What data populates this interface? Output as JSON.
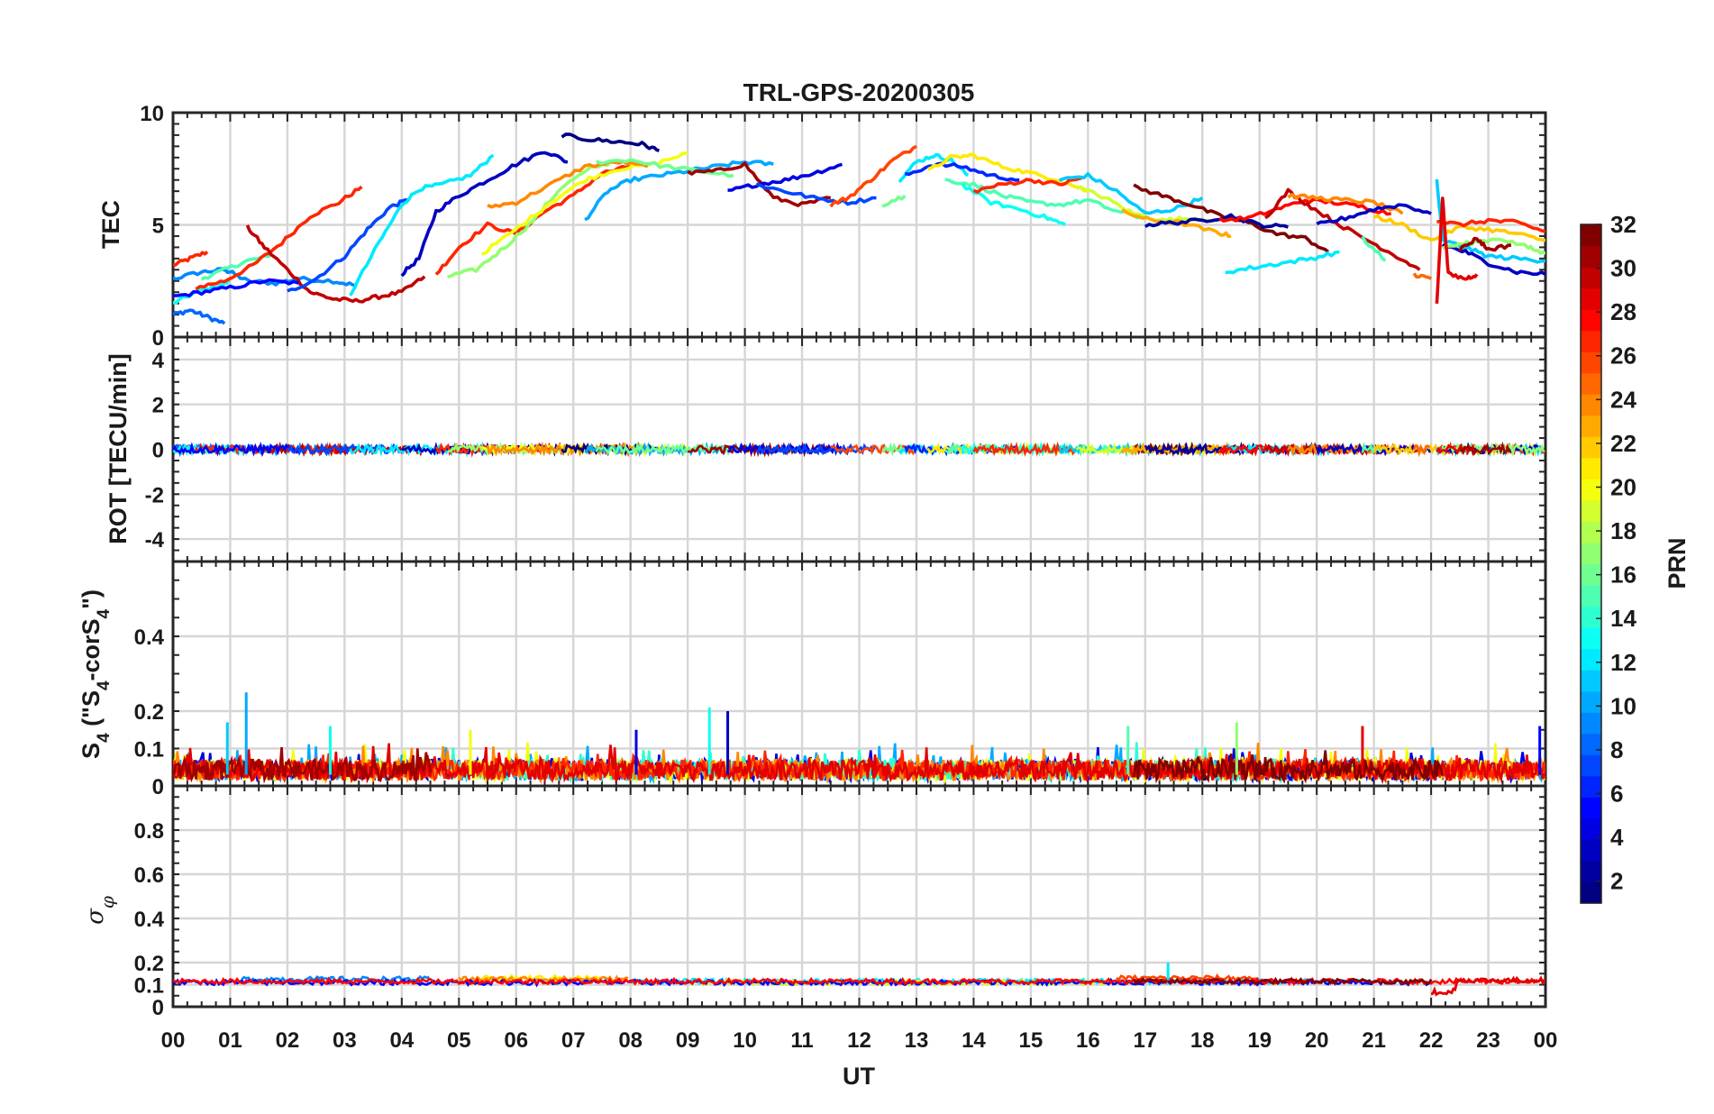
{
  "chart_data": {
    "type": "line",
    "title": "TRL-GPS-20200305",
    "xlabel": "UT",
    "x_ticks": [
      "00",
      "01",
      "02",
      "03",
      "04",
      "05",
      "06",
      "07",
      "08",
      "09",
      "10",
      "11",
      "12",
      "13",
      "14",
      "15",
      "16",
      "17",
      "18",
      "19",
      "20",
      "21",
      "22",
      "23",
      "00"
    ],
    "xlim": [
      0,
      24
    ],
    "grid": true,
    "colorbar": {
      "label": "PRN",
      "range": [
        1,
        32
      ],
      "ticks": [
        "2",
        "4",
        "6",
        "8",
        "10",
        "12",
        "14",
        "16",
        "18",
        "20",
        "22",
        "24",
        "26",
        "28",
        "30",
        "32"
      ],
      "colormap": "jet"
    },
    "panels": [
      {
        "id": "tec",
        "ylabel": "TEC",
        "ylim": [
          0,
          10
        ],
        "yticks": [
          "0",
          "5",
          "10"
        ],
        "series": [
          {
            "prn": 27,
            "x": [
              0.0,
              0.3,
              0.6
            ],
            "y": [
              3.2,
              3.5,
              3.8
            ]
          },
          {
            "prn": 9,
            "x": [
              0.0,
              0.5,
              0.9,
              1.0,
              1.3,
              1.8,
              2.2,
              2.8,
              3.2
            ],
            "y": [
              2.6,
              2.9,
              3.0,
              2.9,
              2.5,
              2.4,
              2.6,
              2.5,
              2.3
            ]
          },
          {
            "prn": 8,
            "x": [
              0.0,
              0.3,
              0.6,
              0.9
            ],
            "y": [
              1.0,
              1.2,
              0.9,
              0.6
            ]
          },
          {
            "prn": 13,
            "x": [
              0.0,
              0.4,
              0.8,
              1.0
            ],
            "y": [
              1.5,
              2.0,
              2.3,
              2.5
            ]
          },
          {
            "prn": 15,
            "x": [
              0.5,
              0.9,
              1.3,
              1.7
            ],
            "y": [
              2.6,
              3.0,
              3.4,
              3.6
            ]
          },
          {
            "prn": 27,
            "x": [
              0.4,
              0.9,
              1.4,
              1.9,
              2.4,
              2.9,
              3.3
            ],
            "y": [
              2.2,
              2.5,
              3.2,
              4.2,
              5.4,
              6.0,
              6.7
            ]
          },
          {
            "prn": 30,
            "x": [
              1.3,
              1.6,
              2.0,
              2.4,
              2.8,
              3.2,
              3.6,
              4.0,
              4.4
            ],
            "y": [
              4.9,
              4.0,
              3.0,
              2.0,
              1.7,
              1.6,
              1.8,
              2.0,
              2.7
            ]
          },
          {
            "prn": 5,
            "x": [
              0.0,
              0.5,
              1.0,
              1.6,
              2.2
            ],
            "y": [
              1.8,
              2.0,
              2.2,
              2.5,
              2.4
            ]
          },
          {
            "prn": 7,
            "x": [
              2.0,
              2.5,
              3.0,
              3.4,
              3.8,
              4.1
            ],
            "y": [
              2.0,
              2.6,
              3.6,
              4.8,
              5.8,
              6.1
            ]
          },
          {
            "prn": 12,
            "x": [
              3.1,
              3.6,
              4.0,
              4.3,
              4.7,
              5.2,
              5.6
            ],
            "y": [
              1.9,
              4.2,
              5.9,
              6.6,
              6.8,
              7.2,
              8.1
            ]
          },
          {
            "prn": 3,
            "x": [
              4.0,
              4.3,
              4.6,
              5.0,
              5.5,
              6.0,
              6.5,
              6.9
            ],
            "y": [
              2.8,
              3.5,
              5.6,
              6.3,
              7.0,
              7.7,
              8.3,
              7.8
            ]
          },
          {
            "prn": 27,
            "x": [
              4.6,
              5.0,
              5.5,
              6.0,
              6.5,
              7.0,
              7.5,
              8.0
            ],
            "y": [
              2.8,
              4.0,
              5.0,
              4.6,
              5.6,
              6.3,
              7.3,
              7.6
            ]
          },
          {
            "prn": 17,
            "x": [
              4.8,
              5.3,
              5.8,
              6.3,
              6.8,
              7.3,
              7.8
            ],
            "y": [
              2.7,
              3.0,
              4.0,
              5.2,
              6.7,
              7.5,
              7.9
            ]
          },
          {
            "prn": 20,
            "x": [
              5.4,
              6.0,
              6.6,
              7.2,
              7.8,
              8.4,
              9.0
            ],
            "y": [
              3.7,
              4.8,
              6.0,
              7.0,
              7.5,
              7.7,
              8.2
            ]
          },
          {
            "prn": 24,
            "x": [
              5.5,
              6.0,
              6.6,
              7.2,
              7.8,
              8.3
            ],
            "y": [
              5.8,
              6.0,
              6.8,
              7.6,
              7.8,
              7.6
            ]
          },
          {
            "prn": 1,
            "x": [
              6.8,
              7.3,
              7.8,
              8.2,
              8.5
            ],
            "y": [
              9.0,
              8.8,
              8.7,
              8.6,
              8.3
            ]
          },
          {
            "prn": 10,
            "x": [
              7.2,
              7.6,
              8.0,
              8.5,
              9.0,
              9.5,
              10.0,
              10.5
            ],
            "y": [
              5.2,
              6.5,
              7.0,
              7.2,
              7.4,
              7.6,
              7.8,
              7.7
            ]
          },
          {
            "prn": 16,
            "x": [
              7.4,
              8.0,
              8.6,
              9.2,
              9.8
            ],
            "y": [
              7.8,
              7.9,
              7.6,
              7.4,
              7.2
            ]
          },
          {
            "prn": 31,
            "x": [
              9.0,
              9.5,
              10.0,
              10.5,
              11.0,
              11.5
            ],
            "y": [
              7.3,
              7.4,
              7.7,
              6.2,
              5.9,
              6.2
            ]
          },
          {
            "prn": 4,
            "x": [
              9.7,
              10.2,
              10.7,
              11.2,
              11.7
            ],
            "y": [
              6.5,
              6.8,
              7.0,
              7.3,
              7.7
            ]
          },
          {
            "prn": 7,
            "x": [
              10.2,
              10.7,
              11.2,
              11.8,
              12.3
            ],
            "y": [
              6.8,
              6.5,
              6.2,
              6.0,
              6.2
            ]
          },
          {
            "prn": 26,
            "x": [
              11.5,
              11.8,
              12.2,
              12.6,
              13.0
            ],
            "y": [
              5.9,
              6.2,
              7.0,
              7.9,
              8.5
            ]
          },
          {
            "prn": 16,
            "x": [
              12.4,
              12.8
            ],
            "y": [
              5.9,
              6.3
            ]
          },
          {
            "prn": 12,
            "x": [
              12.7,
              13.0,
              13.3,
              13.6,
              13.9
            ],
            "y": [
              7.0,
              7.8,
              8.1,
              7.9,
              7.2
            ]
          },
          {
            "prn": 6,
            "x": [
              12.8,
              13.3,
              13.8,
              14.3,
              14.8
            ],
            "y": [
              7.2,
              7.7,
              7.6,
              7.2,
              7.0
            ]
          },
          {
            "prn": 21,
            "x": [
              13.2,
              13.6,
              14.0,
              14.5,
              15.0,
              15.5,
              16.0
            ],
            "y": [
              7.4,
              8.0,
              8.1,
              7.6,
              7.3,
              7.0,
              6.5
            ]
          },
          {
            "prn": 15,
            "x": [
              13.5,
              14.0,
              14.5,
              15.0,
              15.5,
              16.0,
              16.5,
              17.0
            ],
            "y": [
              7.0,
              6.8,
              6.3,
              6.0,
              5.9,
              6.1,
              5.6,
              5.3
            ]
          },
          {
            "prn": 13,
            "x": [
              13.8,
              14.3,
              14.8,
              15.3,
              15.6
            ],
            "y": [
              6.8,
              6.0,
              5.7,
              5.3,
              5.0
            ]
          },
          {
            "prn": 27,
            "x": [
              14.0,
              14.5,
              15.0,
              15.5,
              15.9
            ],
            "y": [
              6.5,
              6.8,
              7.0,
              6.8,
              7.1
            ]
          },
          {
            "prn": 11,
            "x": [
              15.5,
              16.0,
              16.5,
              17.0,
              17.5,
              18.0
            ],
            "y": [
              7.0,
              7.2,
              6.5,
              5.5,
              5.7,
              6.2
            ]
          },
          {
            "prn": 19,
            "x": [
              15.8,
              16.3,
              16.8,
              17.3,
              17.8,
              18.3
            ],
            "y": [
              6.7,
              6.2,
              5.5,
              5.2,
              5.3,
              5.2
            ]
          },
          {
            "prn": 32,
            "x": [
              16.8,
              17.3,
              17.8,
              18.3,
              18.8,
              19.3,
              19.8,
              20.2
            ],
            "y": [
              6.7,
              6.3,
              5.9,
              5.4,
              5.1,
              4.6,
              4.4,
              3.8
            ]
          },
          {
            "prn": 23,
            "x": [
              16.6,
              17.1,
              17.6,
              18.2,
              18.5
            ],
            "y": [
              5.6,
              5.2,
              5.1,
              4.7,
              4.5
            ]
          },
          {
            "prn": 2,
            "x": [
              17.0,
              17.5,
              18.0,
              18.5,
              19.0,
              19.5
            ],
            "y": [
              5.0,
              5.1,
              5.2,
              5.4,
              5.0,
              4.9
            ]
          },
          {
            "prn": 12,
            "x": [
              18.4,
              18.9,
              19.4,
              19.9,
              20.4
            ],
            "y": [
              2.9,
              3.1,
              3.3,
              3.5,
              3.8
            ]
          },
          {
            "prn": 28,
            "x": [
              18.3,
              18.8,
              19.3,
              19.8,
              20.3,
              20.8,
              21.3
            ],
            "y": [
              5.2,
              5.3,
              5.7,
              6.1,
              6.0,
              5.8,
              5.5
            ]
          },
          {
            "prn": 30,
            "x": [
              19.1,
              19.5,
              19.9,
              20.4,
              20.9,
              21.4,
              21.8
            ],
            "y": [
              5.3,
              6.5,
              5.8,
              5.0,
              4.3,
              3.6,
              3.0
            ]
          },
          {
            "prn": 24,
            "x": [
              19.5,
              20.0,
              20.5,
              21.0,
              21.5
            ],
            "y": [
              6.3,
              6.2,
              6.1,
              6.0,
              5.5
            ]
          },
          {
            "prn": 3,
            "x": [
              20.0,
              20.5,
              21.0,
              21.5,
              22.0
            ],
            "y": [
              5.0,
              5.3,
              5.7,
              5.9,
              5.5
            ]
          },
          {
            "prn": 15,
            "x": [
              20.8,
              21.2
            ],
            "y": [
              4.4,
              3.4
            ]
          },
          {
            "prn": 22,
            "x": [
              21.0,
              21.5,
              22.0,
              22.5,
              23.0,
              23.5,
              24.0
            ],
            "y": [
              5.4,
              5.0,
              4.3,
              4.9,
              4.8,
              4.6,
              4.3
            ]
          },
          {
            "prn": 25,
            "x": [
              21.7,
              22.0
            ],
            "y": [
              2.8,
              2.6
            ]
          },
          {
            "prn": 11,
            "x": [
              22.1,
              22.2,
              22.6,
              23.0,
              23.5,
              24.0
            ],
            "y": [
              7.0,
              4.3,
              4.0,
              3.6,
              3.5,
              3.4
            ]
          },
          {
            "prn": 27,
            "x": [
              22.1,
              22.5,
              23.0,
              23.5,
              24.0
            ],
            "y": [
              5.2,
              5.0,
              5.2,
              5.1,
              4.7
            ]
          },
          {
            "prn": 3,
            "x": [
              22.2,
              22.6,
              23.0,
              23.5,
              24.0
            ],
            "y": [
              4.1,
              3.8,
              3.3,
              2.9,
              2.8
            ]
          },
          {
            "prn": 17,
            "x": [
              22.2,
              22.7,
              23.2,
              23.7,
              24.0
            ],
            "y": [
              4.0,
              4.2,
              4.4,
              4.0,
              3.7
            ]
          },
          {
            "prn": 29,
            "x": [
              22.1,
              22.2,
              22.3,
              22.6,
              22.8
            ],
            "y": [
              1.5,
              6.2,
              2.8,
              2.6,
              2.8
            ]
          },
          {
            "prn": 31,
            "x": [
              22.5,
              22.8,
              23.0,
              23.4
            ],
            "y": [
              3.9,
              4.4,
              3.9,
              4.1
            ]
          }
        ]
      },
      {
        "id": "rot",
        "ylabel": "ROT [TECU/min]",
        "ylim": [
          -5,
          5
        ],
        "yticks": [
          "-4",
          "-2",
          "0",
          "2",
          "4"
        ]
      },
      {
        "id": "s4",
        "ylabel": "S4 (\"S4-corS4\")",
        "ylim": [
          0,
          0.6
        ],
        "yticks": [
          "0",
          "0.1",
          "0.2",
          "0.4"
        ],
        "spikes": [
          {
            "x": 1.28,
            "y": 0.25,
            "prn": 10
          },
          {
            "x": 9.7,
            "y": 0.2,
            "prn": 3
          },
          {
            "x": 9.38,
            "y": 0.21,
            "prn": 13
          },
          {
            "x": 0.95,
            "y": 0.17,
            "prn": 11
          },
          {
            "x": 2.75,
            "y": 0.16,
            "prn": 13
          },
          {
            "x": 5.2,
            "y": 0.15,
            "prn": 20
          },
          {
            "x": 8.1,
            "y": 0.15,
            "prn": 4
          },
          {
            "x": 16.7,
            "y": 0.16,
            "prn": 15
          },
          {
            "x": 18.6,
            "y": 0.17,
            "prn": 17
          },
          {
            "x": 20.8,
            "y": 0.16,
            "prn": 29
          },
          {
            "x": 23.9,
            "y": 0.16,
            "prn": 5
          }
        ]
      },
      {
        "id": "sigma_phi",
        "ylabel": "σφ",
        "ylim": [
          0,
          1
        ],
        "yticks": [
          "0",
          "0.1",
          "0.2",
          "0.4",
          "0.6",
          "0.8"
        ]
      }
    ]
  }
}
